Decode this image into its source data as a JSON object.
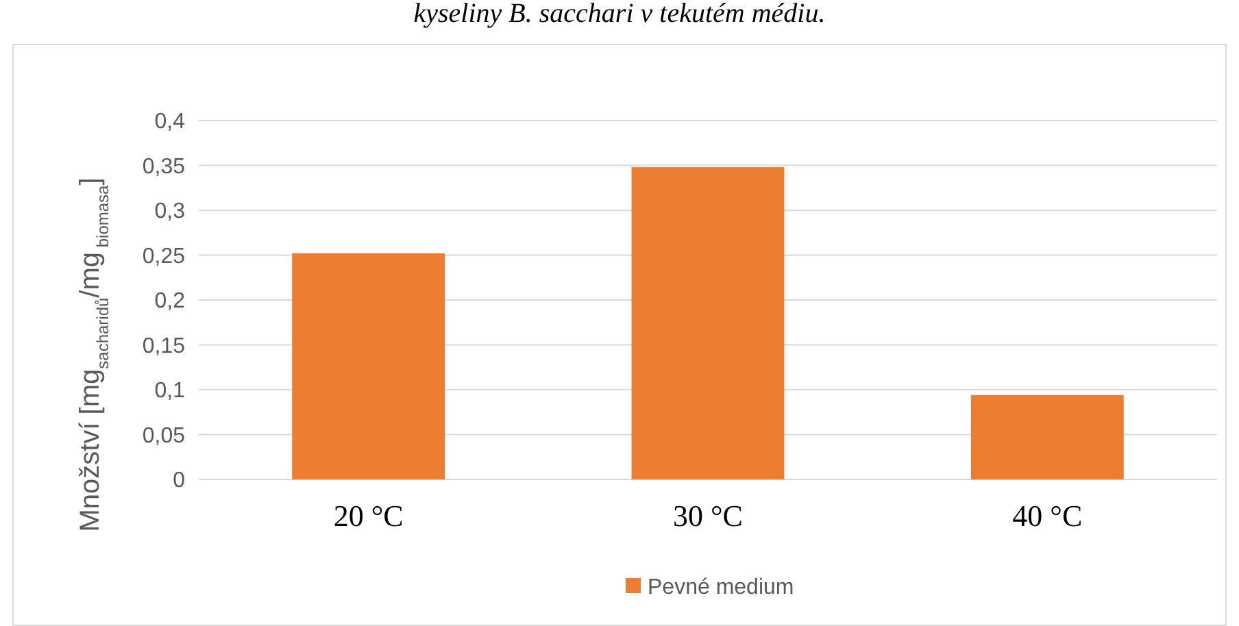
{
  "chart_data": {
    "type": "bar",
    "annotations": [
      "kyseliny B. sacchari v tekutém médiu."
    ],
    "ylabel": "Množství [mg$_{sacharidů}$/mg$_{ biomasa}$]",
    "categories": [
      "20 °C",
      "30 °C",
      "40 °C"
    ],
    "series": [
      {
        "name": "Pevné medium",
        "color": "#ed7d31",
        "values": [
          0.252,
          0.348,
          0.094
        ]
      }
    ],
    "ylim": [
      0,
      0.4
    ],
    "yticks": [
      {
        "value": 0,
        "label": "0"
      },
      {
        "value": 0.05,
        "label": "0,05"
      },
      {
        "value": 0.1,
        "label": "0,1"
      },
      {
        "value": 0.15,
        "label": "0,15"
      },
      {
        "value": 0.2,
        "label": "0,2"
      },
      {
        "value": 0.25,
        "label": "0,25"
      },
      {
        "value": 0.3,
        "label": "0,3"
      },
      {
        "value": 0.35,
        "label": "0,35"
      },
      {
        "value": 0.4,
        "label": "0,4"
      }
    ],
    "grid": "y",
    "legend": "bottom"
  }
}
